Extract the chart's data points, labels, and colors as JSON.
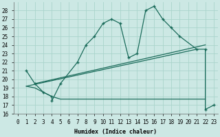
{
  "xlabel": "Humidex (Indice chaleur)",
  "bg_color": "#cce8e4",
  "grid_color": "#aad4cc",
  "line_color": "#1a6b5a",
  "xlim": [
    -0.5,
    23.5
  ],
  "ylim": [
    16,
    29
  ],
  "xticks": [
    0,
    1,
    2,
    3,
    4,
    5,
    6,
    7,
    8,
    9,
    10,
    11,
    12,
    13,
    14,
    15,
    16,
    17,
    18,
    19,
    20,
    21,
    22,
    23
  ],
  "yticks": [
    16,
    17,
    18,
    19,
    20,
    21,
    22,
    23,
    24,
    25,
    26,
    27,
    28
  ],
  "line1_x": [
    1,
    2,
    3,
    4,
    4,
    5,
    7,
    8,
    9,
    10,
    11,
    12,
    13,
    14,
    15,
    16,
    17,
    18,
    19,
    21,
    22,
    22,
    23
  ],
  "line1_y": [
    21,
    19.5,
    18.5,
    18.0,
    17.5,
    19.5,
    22,
    24,
    25,
    26.5,
    27,
    26.5,
    22.5,
    23,
    28,
    28.5,
    27,
    26,
    25,
    23.5,
    23.5,
    16.5,
    17
  ],
  "line2_x": [
    1,
    2,
    3,
    4,
    5,
    6,
    7,
    8,
    9,
    10,
    11,
    12,
    13,
    14,
    15,
    16,
    17,
    18,
    19,
    20,
    21,
    22
  ],
  "line2_y": [
    19.2,
    19.0,
    18.5,
    18.0,
    17.7,
    17.7,
    17.7,
    17.7,
    17.7,
    17.7,
    17.7,
    17.7,
    17.7,
    17.7,
    17.7,
    17.7,
    17.7,
    17.7,
    17.7,
    17.7,
    17.7,
    17.7
  ],
  "line3_x": [
    1,
    21
  ],
  "line3_y": [
    19.2,
    23.5
  ],
  "line4_x": [
    2,
    22
  ],
  "line4_y": [
    19.5,
    24.0
  ]
}
